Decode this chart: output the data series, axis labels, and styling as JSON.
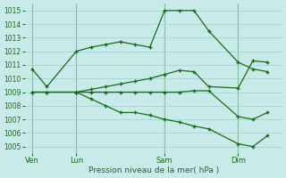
{
  "background_color": "#c8eae8",
  "grid_color": "#9dcfcc",
  "line_color": "#1a6b1a",
  "xlabel": "Pression niveau de la mer( hPa )",
  "ylim": [
    1004.5,
    1015.5
  ],
  "yticks": [
    1005,
    1006,
    1007,
    1008,
    1009,
    1010,
    1011,
    1012,
    1013,
    1014,
    1015
  ],
  "x_tick_labels": [
    "Ven",
    "Lun",
    "Sam",
    "Dim"
  ],
  "x_tick_positions": [
    0,
    3,
    9,
    14
  ],
  "x_vline_positions": [
    0,
    3,
    9,
    14
  ],
  "xlim": [
    -0.5,
    17
  ],
  "series": [
    {
      "x": [
        0,
        1,
        3,
        4,
        5,
        6,
        7,
        8,
        9,
        10,
        11,
        12,
        14,
        15,
        16
      ],
      "y": [
        1010.7,
        1009.4,
        1012.0,
        1012.3,
        1012.5,
        1012.7,
        1012.5,
        1012.3,
        1015.0,
        1015.0,
        1015.0,
        1013.5,
        1011.2,
        1010.7,
        1010.5
      ],
      "marker": "+"
    },
    {
      "x": [
        0,
        1,
        3,
        4,
        5,
        6,
        7,
        8,
        9,
        10,
        11,
        12,
        14,
        15,
        16
      ],
      "y": [
        1009.0,
        1009.0,
        1009.0,
        1009.2,
        1009.4,
        1009.6,
        1009.8,
        1010.0,
        1010.3,
        1010.6,
        1010.5,
        1009.4,
        1009.3,
        1011.3,
        1011.2
      ],
      "marker": "+"
    },
    {
      "x": [
        0,
        1,
        3,
        4,
        5,
        6,
        7,
        8,
        9,
        10,
        11,
        12,
        14,
        15,
        16
      ],
      "y": [
        1009.0,
        1009.0,
        1009.0,
        1009.0,
        1009.0,
        1009.0,
        1009.0,
        1009.0,
        1009.0,
        1009.0,
        1009.1,
        1009.1,
        1007.2,
        1007.0,
        1007.5
      ],
      "marker": "+"
    },
    {
      "x": [
        3,
        4,
        5,
        6,
        7,
        8,
        9,
        10,
        11,
        12,
        14,
        15,
        16
      ],
      "y": [
        1009.0,
        1008.5,
        1008.0,
        1007.5,
        1007.5,
        1007.3,
        1007.0,
        1006.8,
        1006.5,
        1006.3,
        1005.2,
        1005.0,
        1005.8
      ],
      "marker": "+"
    }
  ]
}
